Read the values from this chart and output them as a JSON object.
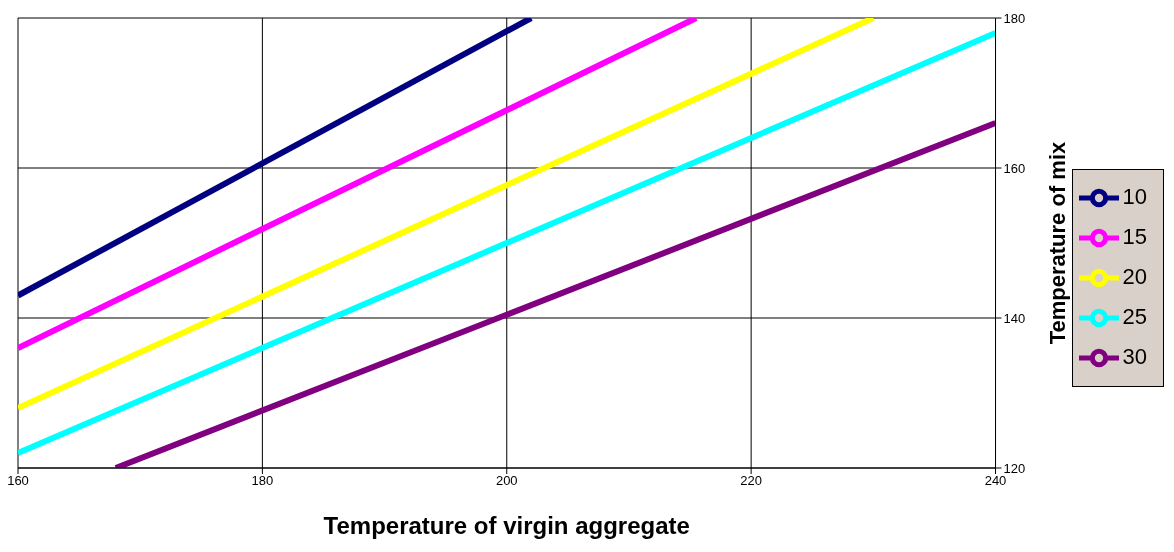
{
  "chart_data": {
    "type": "line",
    "xlabel": "Temperature of virgin aggregate",
    "ylabel": "Temperature of mix",
    "xlim": [
      160,
      240
    ],
    "xticks": [
      160,
      180,
      200,
      220,
      240
    ],
    "ylim": [
      120,
      180
    ],
    "yticks": [
      120,
      140,
      160,
      180
    ],
    "grid": true,
    "legend": "right",
    "marker": "none",
    "line_style": "solid",
    "series": [
      {
        "name": "10",
        "color": "#000080",
        "x": [
          160,
          202
        ],
        "values": [
          143,
          180
        ]
      },
      {
        "name": "15",
        "color": "#ff00ff",
        "x": [
          160,
          215.5
        ],
        "values": [
          136,
          180
        ]
      },
      {
        "name": "20",
        "color": "#ffff00",
        "x": [
          160,
          230
        ],
        "values": [
          128,
          180
        ]
      },
      {
        "name": "25",
        "color": "#00ffff",
        "x": [
          160,
          240
        ],
        "values": [
          122,
          178
        ]
      },
      {
        "name": "30",
        "color": "#800080",
        "x": [
          168,
          240
        ],
        "values": [
          120,
          166
        ]
      }
    ]
  }
}
